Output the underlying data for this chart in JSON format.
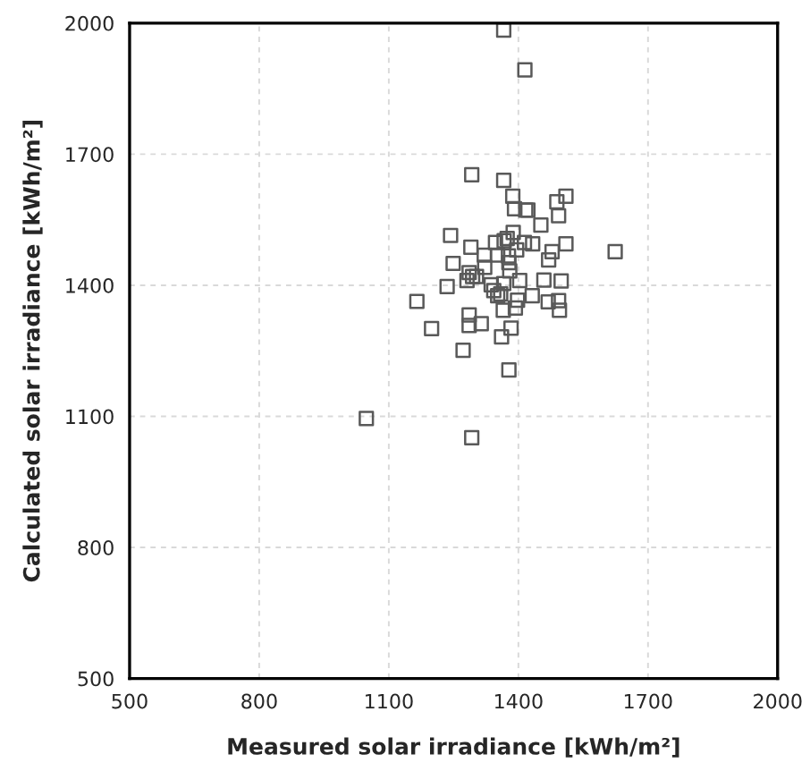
{
  "chart_data": {
    "type": "scatter",
    "xlabel": "Measured solar irradiance [kWh/m²]",
    "ylabel": "Calculated solar irradiance [kWh/m²]",
    "xlim": [
      500,
      2000
    ],
    "ylim": [
      500,
      2000
    ],
    "xticks": [
      500,
      800,
      1100,
      1400,
      1700,
      2000
    ],
    "yticks": [
      500,
      800,
      1100,
      1400,
      1700,
      2000
    ],
    "grid": true,
    "marker": "square",
    "series": [
      {
        "color": "#595959",
        "x": [
          1366,
          1415,
          1292,
          1366,
          1387,
          1510,
          1489,
          1391,
          1417,
          1422,
          1493,
          1452,
          1388,
          1243,
          1374,
          1367,
          1347,
          1414,
          1433,
          1510,
          1290,
          1396,
          1478,
          1624,
          1321,
          1352,
          1377,
          1470,
          1378,
          1249,
          1322,
          1380,
          1286,
          1303,
          1294,
          1281,
          1403,
          1459,
          1499,
          1366,
          1337,
          1235,
          1343,
          1359,
          1352,
          1432,
          1398,
          1165,
          1469,
          1493,
          1495,
          1365,
          1393,
          1286,
          1286,
          1314,
          1199,
          1383,
          1361,
          1272,
          1378,
          1048,
          1292
        ],
        "values": [
          1984,
          1893,
          1653,
          1640,
          1604,
          1604,
          1591,
          1575,
          1572,
          1572,
          1559,
          1538,
          1521,
          1514,
          1507,
          1502,
          1498,
          1498,
          1495,
          1495,
          1487,
          1481,
          1477,
          1477,
          1469,
          1469,
          1467,
          1458,
          1452,
          1450,
          1441,
          1433,
          1429,
          1420,
          1420,
          1411,
          1411,
          1412,
          1410,
          1404,
          1401,
          1397,
          1388,
          1380,
          1376,
          1376,
          1366,
          1363,
          1362,
          1365,
          1343,
          1343,
          1348,
          1332,
          1308,
          1312,
          1301,
          1302,
          1282,
          1251,
          1206,
          1095,
          1051
        ]
      }
    ]
  }
}
